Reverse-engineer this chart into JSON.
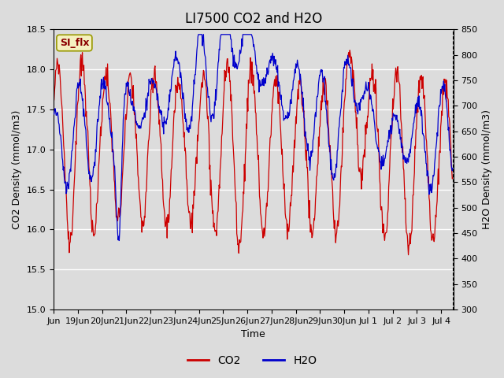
{
  "title": "LI7500 CO2 and H2O",
  "xlabel": "Time",
  "ylabel_left": "CO2 Density (mmol/m3)",
  "ylabel_right": "H2O Density (mmol/m3)",
  "co2_color": "#CC0000",
  "h2o_color": "#0000CC",
  "ylim_left": [
    15.0,
    18.5
  ],
  "ylim_right": [
    300,
    850
  ],
  "bg_color": "#DCDCDC",
  "annotation_text": "SI_flx",
  "annotation_color": "#8B0000",
  "annotation_bg": "#F5F0C0",
  "annotation_border": "#999900",
  "title_fontsize": 12,
  "axis_fontsize": 9,
  "tick_fontsize": 8,
  "linewidth": 0.9
}
